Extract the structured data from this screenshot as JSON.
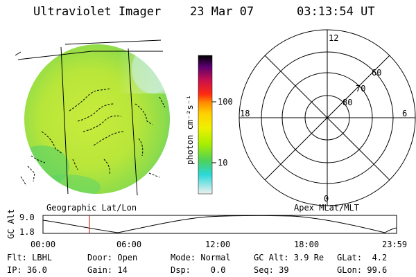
{
  "header": {
    "title": "Ultraviolet Imager",
    "date": "23 Mar 07",
    "time": "03:13:54 UT"
  },
  "left_panel": {
    "caption": "Geographic Lat/Lon"
  },
  "colorbar": {
    "unit_label": "photon cm⁻²s⁻¹",
    "tick_labels": [
      "100",
      "10"
    ],
    "scale": "log",
    "colors": [
      "#000000",
      "#7a0080",
      "#c8104d",
      "#ff2a10",
      "#ff8a00",
      "#ffd000",
      "#f0f000",
      "#a8ee00",
      "#4ed15a",
      "#2ad8d8",
      "#e8e8e8"
    ]
  },
  "right_panel": {
    "caption": "Apex MLat/MLT",
    "mlt_labels": [
      "12",
      "6",
      "0",
      "18"
    ],
    "mlat_labels": [
      "80",
      "70",
      "60"
    ]
  },
  "altitude_plot": {
    "ylabel": "GC Alt",
    "ytick_labels": [
      "9.0",
      "1.8"
    ],
    "xtick_labels": [
      "00:00",
      "06:00",
      "12:00",
      "18:00",
      "23:59"
    ],
    "marker_color": "#d00000"
  },
  "info": {
    "filter": "Flt: LBHL",
    "door": "Door: Open",
    "mode": "Mode: Normal",
    "gc_alt": "GC Alt: 3.9 Re",
    "glat": "GLat:  4.2",
    "ip": "IP: 36.0",
    "gain": "Gain: 14",
    "dsp": "Dsp:    0.0",
    "seq": "Seq: 39",
    "glon": "GLon: 99.6"
  }
}
